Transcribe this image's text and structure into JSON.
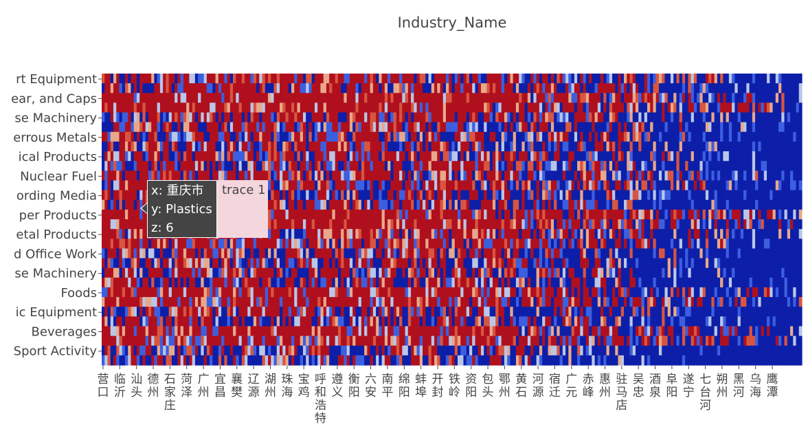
{
  "chart_data": {
    "type": "heatmap",
    "title": "Industry_Name",
    "y_tick_labels": [
      "rt Equipment",
      "ear, and Caps",
      "se Machinery",
      "errous Metals",
      "ical Products",
      "Nuclear Fuel",
      "ording Media",
      "per Products",
      "etal Products",
      "d Office Work",
      "se Machinery",
      "Foods",
      "ic Equipment",
      "Beverages",
      "Sport Activity"
    ],
    "x_tick_labels": [
      "营口",
      "临沂",
      "汕头",
      "德州",
      "石家庄",
      "菏泽",
      "广州",
      "宜昌",
      "襄樊",
      "辽源",
      "湖州",
      "珠海",
      "宝鸡",
      "呼和浩特",
      "遵义",
      "衡阳",
      "六安",
      "南平",
      "绵阳",
      "蚌埠",
      "开封",
      "铁岭",
      "资阳",
      "包头",
      "鄂州",
      "黄石",
      "河源",
      "宿迁",
      "广元",
      "赤峰",
      "惠州",
      "驻马店",
      "吴忠",
      "酒泉",
      "阜阳",
      "遂宁",
      "七台河",
      "朔州",
      "黑河",
      "乌海",
      "鹰潭"
    ],
    "colorscale": [
      "#0d1fa8",
      "#3c5fe0",
      "#b9c6e8",
      "#e8a88a",
      "#d9553f",
      "#b0101e"
    ],
    "hover": {
      "x_line": "x: 重庆市",
      "y_line": "y: Plastics",
      "z_line": "z: 6",
      "trace": "trace 1"
    }
  }
}
